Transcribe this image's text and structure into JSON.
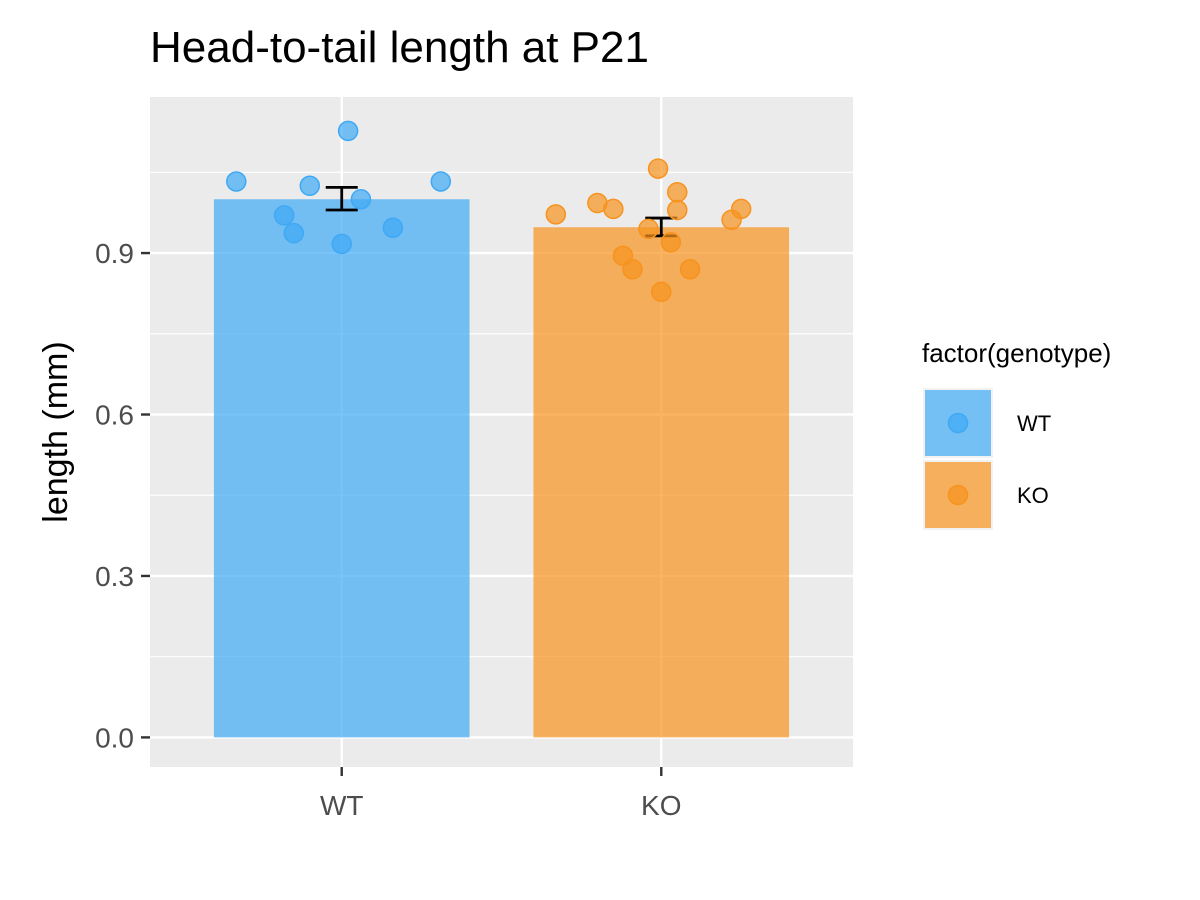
{
  "chart_data": {
    "type": "bar",
    "title": "Head-to-tail length at P21",
    "xlabel": "",
    "ylabel": "length (mm)",
    "categories": [
      "WT",
      "KO"
    ],
    "values": [
      1.0,
      0.948
    ],
    "error": [
      {
        "low": 0.98,
        "high": 1.022
      },
      {
        "low": 0.932,
        "high": 0.965
      }
    ],
    "points": [
      {
        "group": "WT",
        "offset": -0.33,
        "y": 1.033
      },
      {
        "group": "WT",
        "offset": -0.1,
        "y": 1.025
      },
      {
        "group": "WT",
        "offset": 0.02,
        "y": 1.127
      },
      {
        "group": "WT",
        "offset": 0.31,
        "y": 1.033
      },
      {
        "group": "WT",
        "offset": -0.18,
        "y": 0.97
      },
      {
        "group": "WT",
        "offset": -0.15,
        "y": 0.937
      },
      {
        "group": "WT",
        "offset": 0.06,
        "y": 1.0
      },
      {
        "group": "WT",
        "offset": 0.16,
        "y": 0.947
      },
      {
        "group": "WT",
        "offset": 0.0,
        "y": 0.917
      },
      {
        "group": "KO",
        "offset": -0.33,
        "y": 0.972
      },
      {
        "group": "KO",
        "offset": -0.2,
        "y": 0.993
      },
      {
        "group": "KO",
        "offset": -0.15,
        "y": 0.982
      },
      {
        "group": "KO",
        "offset": -0.12,
        "y": 0.895
      },
      {
        "group": "KO",
        "offset": -0.09,
        "y": 0.87
      },
      {
        "group": "KO",
        "offset": -0.04,
        "y": 0.945
      },
      {
        "group": "KO",
        "offset": -0.01,
        "y": 1.057
      },
      {
        "group": "KO",
        "offset": 0.05,
        "y": 1.013
      },
      {
        "group": "KO",
        "offset": 0.05,
        "y": 0.98
      },
      {
        "group": "KO",
        "offset": 0.03,
        "y": 0.92
      },
      {
        "group": "KO",
        "offset": 0.09,
        "y": 0.87
      },
      {
        "group": "KO",
        "offset": 0.0,
        "y": 0.828
      },
      {
        "group": "KO",
        "offset": 0.22,
        "y": 0.962
      },
      {
        "group": "KO",
        "offset": 0.25,
        "y": 0.982
      }
    ],
    "ylim": [
      -0.055,
      1.19
    ],
    "yticks": [
      0.0,
      0.3,
      0.6,
      0.9
    ],
    "ytick_labels": [
      "0.0",
      "0.3",
      "0.6",
      "0.9"
    ],
    "grid": true,
    "legend": {
      "title": "factor(genotype)",
      "position": "right",
      "entries": [
        "WT",
        "KO"
      ]
    },
    "colors": {
      "WT": "#3fa9f5",
      "KO": "#f7931e",
      "panel_bg": "#ebebeb",
      "grid_major": "#ffffff"
    }
  }
}
